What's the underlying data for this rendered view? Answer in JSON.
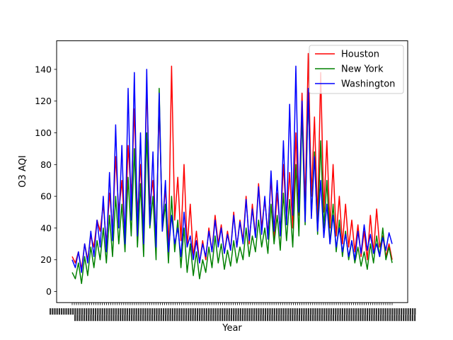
{
  "chart_data": {
    "type": "line",
    "title": "",
    "xlabel": "Year",
    "ylabel": "O3 AQI",
    "ylim": [
      -7,
      158
    ],
    "yticks": [
      0,
      20,
      40,
      60,
      80,
      100,
      120,
      140
    ],
    "grid": false,
    "legend_position": "top-right",
    "x_tick_labels_note": "dense overlapping date tick labels, unreadable",
    "series": [
      {
        "name": "Houston",
        "color": "#ff0000",
        "y": [
          22,
          18,
          25,
          14,
          30,
          20,
          35,
          28,
          45,
          38,
          55,
          30,
          62,
          40,
          85,
          50,
          70,
          35,
          92,
          60,
          115,
          48,
          80,
          38,
          130,
          55,
          70,
          30,
          118,
          42,
          65,
          28,
          142,
          45,
          72,
          32,
          80,
          28,
          55,
          22,
          38,
          18,
          32,
          20,
          40,
          25,
          48,
          30,
          42,
          24,
          38,
          26,
          50,
          28,
          45,
          32,
          60,
          30,
          55,
          35,
          68,
          40,
          58,
          36,
          72,
          34,
          62,
          38,
          80,
          45,
          75,
          40,
          100,
          48,
          125,
          55,
          150,
          60,
          110,
          45,
          138,
          50,
          95,
          40,
          80,
          35,
          60,
          30,
          55,
          28,
          45,
          25,
          42,
          22,
          38,
          20,
          48,
          24,
          52,
          28,
          35,
          22,
          30,
          20
        ]
      },
      {
        "name": "New York",
        "color": "#008000",
        "y": [
          12,
          8,
          18,
          5,
          22,
          10,
          28,
          15,
          32,
          20,
          40,
          18,
          48,
          22,
          60,
          30,
          55,
          25,
          72,
          35,
          90,
          28,
          68,
          22,
          100,
          40,
          60,
          20,
          128,
          38,
          55,
          18,
          60,
          25,
          45,
          15,
          40,
          12,
          30,
          10,
          25,
          8,
          20,
          12,
          28,
          15,
          35,
          18,
          30,
          14,
          26,
          16,
          32,
          18,
          28,
          20,
          40,
          22,
          35,
          25,
          45,
          28,
          40,
          24,
          55,
          30,
          48,
          26,
          62,
          32,
          58,
          28,
          80,
          35,
          112,
          42,
          125,
          48,
          88,
          36,
          95,
          40,
          70,
          30,
          55,
          25,
          45,
          22,
          38,
          20,
          32,
          18,
          28,
          16,
          25,
          14,
          30,
          18,
          35,
          22,
          40,
          20,
          28,
          18
        ]
      },
      {
        "name": "Washington",
        "color": "#0000ff",
        "y": [
          20,
          15,
          25,
          12,
          30,
          18,
          38,
          22,
          45,
          28,
          60,
          25,
          75,
          32,
          105,
          40,
          92,
          30,
          128,
          45,
          138,
          35,
          100,
          30,
          140,
          42,
          88,
          28,
          125,
          38,
          70,
          25,
          48,
          30,
          40,
          22,
          50,
          28,
          35,
          20,
          32,
          18,
          30,
          22,
          38,
          25,
          45,
          28,
          40,
          24,
          36,
          26,
          48,
          28,
          44,
          30,
          58,
          32,
          52,
          34,
          66,
          36,
          60,
          33,
          76,
          38,
          70,
          35,
          95,
          42,
          118,
          48,
          142,
          50,
          120,
          44,
          128,
          46,
          85,
          38,
          70,
          34,
          55,
          30,
          48,
          28,
          40,
          25,
          36,
          22,
          32,
          20,
          38,
          24,
          42,
          26,
          36,
          24,
          30,
          22,
          34,
          26,
          37,
          30
        ]
      }
    ]
  }
}
